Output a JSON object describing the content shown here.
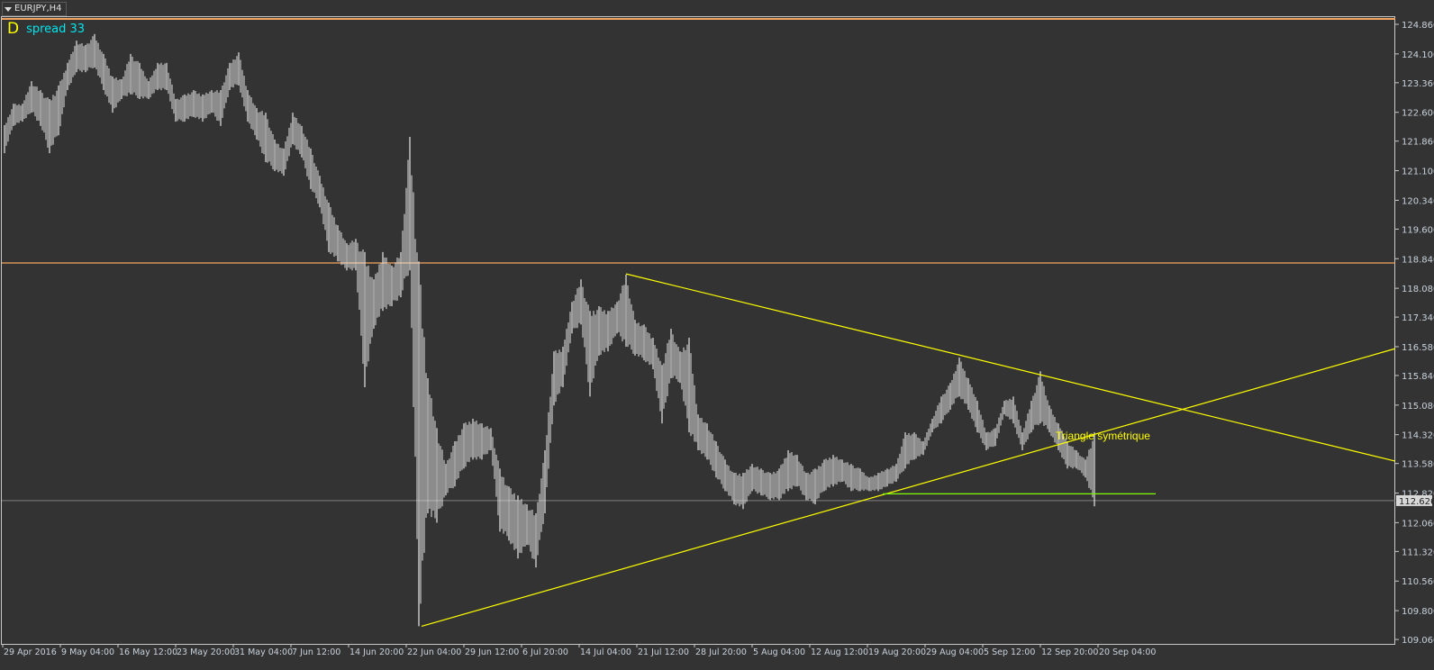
{
  "window": {
    "symbol_title": "EURJPY,H4"
  },
  "indicator": {
    "icon_letter": "D",
    "spread_label": "spread 33"
  },
  "colors": {
    "background": "#333333",
    "bars": "#e6e6e6",
    "resistance": "#f4a460",
    "trendline": "#ffff00",
    "support_level": "#7fff00",
    "current_price_line": "#808080",
    "axis_text": "#c8d2dc"
  },
  "chart_data": {
    "type": "ohlc-bar",
    "symbol": "EURJPY",
    "timeframe": "H4",
    "ylim": [
      109.06,
      125.05
    ],
    "y_ticks": [
      "124.860",
      "124.100",
      "123.360",
      "122.600",
      "121.860",
      "121.100",
      "120.340",
      "119.600",
      "118.840",
      "118.080",
      "117.340",
      "116.580",
      "115.840",
      "115.080",
      "114.320",
      "113.580",
      "112.820",
      "112.060",
      "111.320",
      "110.560",
      "109.800",
      "109.060"
    ],
    "x_ticks": [
      "29 Apr 2016",
      "9 May 04:00",
      "16 May 12:00",
      "23 May 20:00",
      "31 May 04:00",
      "7 Jun 12:00",
      "14 Jun 20:00",
      "22 Jun 04:00",
      "29 Jun 12:00",
      "6 Jul 20:00",
      "14 Jul 04:00",
      "21 Jul 12:00",
      "28 Jul 20:00",
      "5 Aug 04:00",
      "12 Aug 12:00",
      "19 Aug 20:00",
      "29 Aug 04:00",
      "5 Sep 12:00",
      "12 Sep 20:00",
      "20 Sep 04:00"
    ],
    "bars_high_low": [
      [
        122.27,
        121.55
      ],
      [
        122.82,
        122.25
      ],
      [
        122.82,
        122.36
      ],
      [
        123.4,
        122.59
      ],
      [
        123.17,
        122.25
      ],
      [
        122.94,
        121.55
      ],
      [
        123.29,
        122.01
      ],
      [
        123.87,
        123.17
      ],
      [
        124.44,
        123.63
      ],
      [
        124.33,
        123.63
      ],
      [
        124.61,
        123.75
      ],
      [
        124.1,
        123.17
      ],
      [
        123.52,
        122.59
      ],
      [
        123.45,
        122.94
      ],
      [
        124.1,
        123.06
      ],
      [
        123.87,
        122.94
      ],
      [
        123.4,
        122.94
      ],
      [
        123.87,
        123.17
      ],
      [
        123.87,
        123.17
      ],
      [
        122.94,
        122.36
      ],
      [
        123.06,
        122.36
      ],
      [
        123.17,
        122.48
      ],
      [
        123.06,
        122.36
      ],
      [
        123.17,
        122.59
      ],
      [
        123.17,
        122.25
      ],
      [
        123.87,
        123.17
      ],
      [
        124.14,
        123.29
      ],
      [
        123.17,
        122.36
      ],
      [
        122.71,
        121.9
      ],
      [
        122.59,
        121.32
      ],
      [
        121.9,
        121.09
      ],
      [
        121.67,
        120.97
      ],
      [
        122.59,
        121.78
      ],
      [
        122.25,
        121.44
      ],
      [
        121.67,
        120.63
      ],
      [
        120.97,
        120.16
      ],
      [
        120.28,
        119.01
      ],
      [
        119.7,
        118.77
      ],
      [
        119.24,
        118.54
      ],
      [
        119.35,
        118.54
      ],
      [
        119.01,
        115.54
      ],
      [
        118.31,
        117.04
      ],
      [
        119.01,
        117.5
      ],
      [
        118.66,
        117.62
      ],
      [
        119.01,
        117.85
      ],
      [
        121.97,
        118.54
      ],
      [
        118.77,
        109.4
      ],
      [
        115.77,
        112.3
      ],
      [
        114.49,
        112.06
      ],
      [
        113.57,
        112.76
      ],
      [
        114.15,
        112.99
      ],
      [
        114.61,
        113.45
      ],
      [
        114.73,
        113.68
      ],
      [
        114.61,
        113.68
      ],
      [
        114.49,
        113.92
      ],
      [
        113.45,
        111.83
      ],
      [
        112.99,
        111.6
      ],
      [
        112.76,
        111.14
      ],
      [
        112.53,
        111.49
      ],
      [
        112.3,
        110.91
      ],
      [
        113.92,
        112.3
      ],
      [
        116.46,
        115.07
      ],
      [
        116.58,
        115.54
      ],
      [
        117.73,
        116.92
      ],
      [
        118.31,
        117.15
      ],
      [
        117.5,
        115.3
      ],
      [
        117.62,
        116.35
      ],
      [
        117.5,
        116.46
      ],
      [
        117.73,
        116.92
      ],
      [
        118.43,
        116.58
      ],
      [
        117.27,
        116.35
      ],
      [
        117.15,
        116.23
      ],
      [
        116.81,
        116.0
      ],
      [
        116.11,
        114.61
      ],
      [
        117.04,
        115.77
      ],
      [
        116.46,
        115.65
      ],
      [
        116.81,
        114.38
      ],
      [
        114.84,
        113.92
      ],
      [
        114.61,
        113.68
      ],
      [
        114.15,
        113.22
      ],
      [
        113.68,
        112.87
      ],
      [
        113.34,
        112.53
      ],
      [
        113.34,
        112.41
      ],
      [
        113.57,
        112.87
      ],
      [
        113.45,
        112.76
      ],
      [
        113.34,
        112.64
      ],
      [
        113.45,
        112.64
      ],
      [
        113.92,
        112.87
      ],
      [
        113.8,
        112.99
      ],
      [
        113.34,
        112.64
      ],
      [
        113.45,
        112.53
      ],
      [
        113.68,
        112.87
      ],
      [
        113.8,
        112.99
      ],
      [
        113.68,
        113.11
      ],
      [
        113.57,
        112.87
      ],
      [
        113.45,
        112.87
      ],
      [
        113.22,
        112.87
      ],
      [
        113.34,
        112.87
      ],
      [
        113.45,
        112.99
      ],
      [
        113.57,
        113.11
      ],
      [
        114.38,
        113.45
      ],
      [
        114.38,
        113.68
      ],
      [
        114.15,
        113.8
      ],
      [
        114.73,
        114.38
      ],
      [
        115.3,
        114.61
      ],
      [
        115.65,
        114.96
      ],
      [
        116.3,
        115.3
      ],
      [
        115.77,
        114.96
      ],
      [
        115.19,
        114.38
      ],
      [
        114.38,
        113.92
      ],
      [
        114.49,
        114.03
      ],
      [
        115.19,
        114.84
      ],
      [
        115.3,
        114.61
      ],
      [
        114.38,
        113.92
      ],
      [
        115.19,
        114.38
      ],
      [
        115.95,
        114.61
      ],
      [
        115.07,
        114.38
      ],
      [
        114.61,
        113.92
      ],
      [
        114.15,
        113.45
      ],
      [
        113.92,
        113.45
      ],
      [
        113.68,
        113.22
      ],
      [
        114.38,
        112.48
      ]
    ],
    "current_price": "112.626",
    "horizontal_lines": [
      {
        "price": 125.0,
        "role": "resistance"
      },
      {
        "price": 118.73,
        "role": "resistance"
      }
    ],
    "support_segment": {
      "price": 112.8,
      "from_tick": "19 Aug 20:00",
      "to_tick": "20 Sep 04:00"
    },
    "trendlines": [
      {
        "role": "upper",
        "from_price": 118.45,
        "to_price": 113.64,
        "from_tick": "21 Jul 12:00"
      },
      {
        "role": "lower",
        "from_price": 109.4,
        "to_price": 116.53,
        "from_tick": "22 Jun 04:00"
      }
    ],
    "annotation": "Triangle symétrique",
    "grid": false
  }
}
